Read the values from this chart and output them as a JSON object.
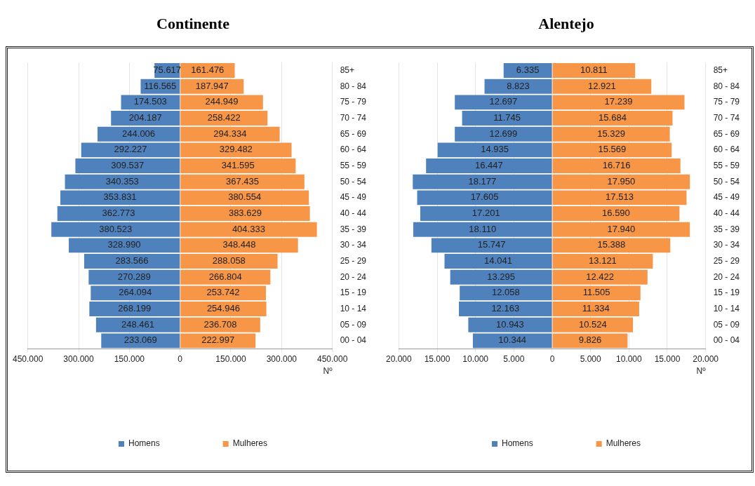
{
  "chart_data": [
    {
      "type": "bar",
      "title": "Continente",
      "orientation": "horizontal",
      "xlabel": "Nº",
      "legend": "bottom",
      "grid": "x",
      "categories": [
        "85+",
        "80 - 84",
        "75 - 79",
        "70 - 74",
        "65 - 69",
        "60 - 64",
        "55 - 59",
        "50 - 54",
        "45 - 49",
        "40 - 44",
        "35 - 39",
        "30 - 34",
        "25 - 29",
        "20 - 24",
        "15 - 19",
        "10 - 14",
        "05 - 09",
        "00 - 04"
      ],
      "xlim": [
        -450000,
        450000
      ],
      "xticks": [
        {
          "value": -450000,
          "label": "450.000"
        },
        {
          "value": -300000,
          "label": "300.000"
        },
        {
          "value": -150000,
          "label": "150.000"
        },
        0,
        {
          "value": 150000,
          "label": "150.000"
        },
        {
          "value": 300000,
          "label": "300.000"
        },
        {
          "value": 450000,
          "label": "450.000"
        }
      ],
      "series": [
        {
          "name": "Homens",
          "color": "#4f81bd",
          "base": [
            -75617,
            -116565,
            -174503,
            -204187,
            -244006,
            -292227,
            -309537,
            -340353,
            -353831,
            -362773,
            -380523,
            -328990,
            -283566,
            -270289,
            -264094,
            -268199,
            -248461,
            -233069
          ],
          "values": [
            75617,
            116565,
            174503,
            204187,
            244006,
            292227,
            309537,
            340353,
            353831,
            362773,
            380523,
            328990,
            283566,
            270289,
            264094,
            268199,
            248461,
            233069
          ],
          "value_labels": [
            "75.617",
            "116.565",
            "174.503",
            "204.187",
            "244.006",
            "292.227",
            "309.537",
            "340.353",
            "353.831",
            "362.773",
            "380.523",
            "328.990",
            "283.566",
            "270.289",
            "264.094",
            "268.199",
            "248.461",
            "233.069"
          ]
        },
        {
          "name": "Mulheres",
          "color": "#f79646",
          "values": [
            161476,
            187947,
            244949,
            258422,
            294334,
            329482,
            341595,
            367435,
            380554,
            383629,
            404333,
            348448,
            288058,
            266804,
            253742,
            254946,
            236708,
            222997
          ],
          "value_labels": [
            "161.476",
            "187.947",
            "244.949",
            "258.422",
            "294.334",
            "329.482",
            "341.595",
            "367.435",
            "380.554",
            "383.629",
            "404.333",
            "348.448",
            "288.058",
            "266.804",
            "253.742",
            "254.946",
            "236.708",
            "222.997"
          ]
        }
      ]
    },
    {
      "type": "bar",
      "title": "Alentejo",
      "orientation": "horizontal",
      "xlabel": "Nº",
      "legend": "bottom",
      "grid": "x",
      "categories": [
        "85+",
        "80 - 84",
        "75 - 79",
        "70 - 74",
        "65 - 69",
        "60 - 64",
        "55 - 59",
        "50 - 54",
        "45 - 49",
        "40 - 44",
        "35 - 39",
        "30 - 34",
        "25 - 29",
        "20 - 24",
        "15 - 19",
        "10 - 14",
        "05 - 09",
        "00 - 04"
      ],
      "xlim": [
        -20000,
        20000
      ],
      "xticks": [
        {
          "value": -20000,
          "label": "20.000"
        },
        {
          "value": -15000,
          "label": "15.000"
        },
        {
          "value": -10000,
          "label": "10.000"
        },
        {
          "value": -5000,
          "label": "5.000"
        },
        0,
        {
          "value": 5000,
          "label": "5.000"
        },
        {
          "value": 10000,
          "label": "10.000"
        },
        {
          "value": 15000,
          "label": "15.000"
        },
        {
          "value": 20000,
          "label": "20.000"
        }
      ],
      "series": [
        {
          "name": "Homens",
          "color": "#4f81bd",
          "base": [
            -6335,
            -8823,
            -12697,
            -11745,
            -12699,
            -14935,
            -16447,
            -18177,
            -17605,
            -17201,
            -18110,
            -15747,
            -14041,
            -13295,
            -12058,
            -12163,
            -10943,
            -10344
          ],
          "values": [
            6335,
            8823,
            12697,
            11745,
            12699,
            14935,
            16447,
            18177,
            17605,
            17201,
            18110,
            15747,
            14041,
            13295,
            12058,
            12163,
            10943,
            10344
          ],
          "value_labels": [
            "6.335",
            "8.823",
            "12.697",
            "11.745",
            "12.699",
            "14.935",
            "16.447",
            "18.177",
            "17.605",
            "17.201",
            "18.110",
            "15.747",
            "14.041",
            "13.295",
            "12.058",
            "12.163",
            "10.943",
            "10.344"
          ]
        },
        {
          "name": "Mulheres",
          "color": "#f79646",
          "values": [
            10811,
            12921,
            17239,
            15684,
            15329,
            15569,
            16716,
            17950,
            17513,
            16590,
            17940,
            15388,
            13121,
            12422,
            11505,
            11334,
            10524,
            9826
          ],
          "value_labels": [
            "10.811",
            "12.921",
            "17.239",
            "15.684",
            "15.329",
            "15.569",
            "16.716",
            "17.950",
            "17.513",
            "16.590",
            "17.940",
            "15.388",
            "13.121",
            "12.422",
            "11.505",
            "11.334",
            "10.524",
            "9.826"
          ]
        }
      ]
    }
  ]
}
